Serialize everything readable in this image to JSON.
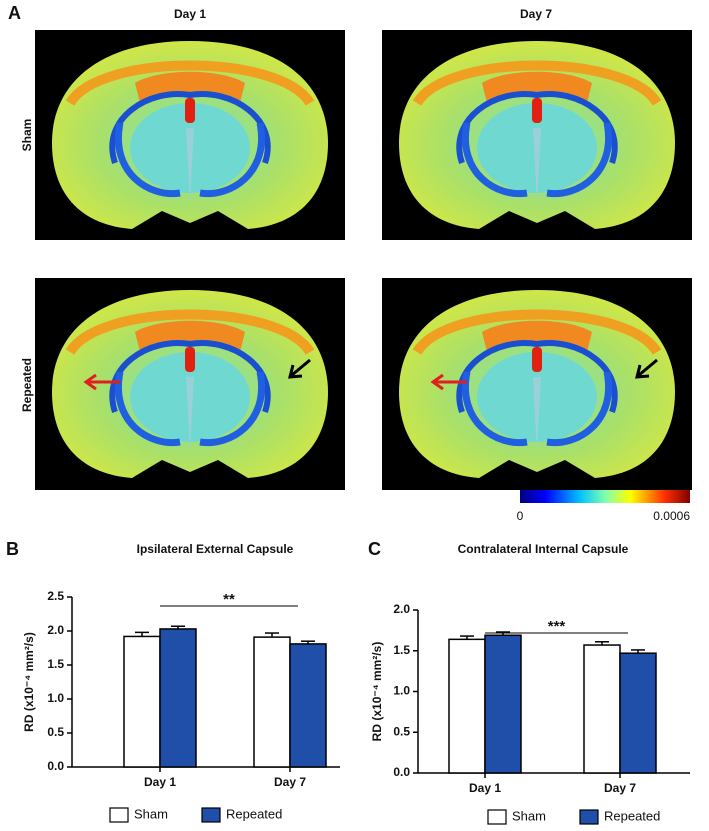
{
  "panel_a": {
    "label": "A",
    "columns": [
      "Day 1",
      "Day 7"
    ],
    "rows": [
      "Sham",
      "Repeated"
    ],
    "colorbar": {
      "ticks": [
        0,
        0.0006
      ]
    }
  },
  "chart_data": [
    {
      "type": "bar",
      "panel_label": "B",
      "title": "Ipsilateral External Capsule",
      "y_label": "RD (x10⁻⁴ mm²/s)",
      "categories": [
        "Day 1",
        "Day 7"
      ],
      "series": [
        {
          "name": "Sham",
          "color": "#ffffff",
          "values": [
            1.92,
            1.91
          ],
          "errors": [
            0.06,
            0.06
          ]
        },
        {
          "name": "Repeated",
          "color": "#1f4fa8",
          "values": [
            2.03,
            1.81
          ],
          "errors": [
            0.04,
            0.04
          ]
        }
      ],
      "ylim": [
        0,
        2.5
      ],
      "yticks": [
        {
          "value": 0,
          "label": "0.0"
        },
        0.5,
        {
          "value": 1,
          "label": "1.0"
        },
        1.5,
        {
          "value": 2,
          "label": "2.0"
        },
        2.5
      ],
      "annotation": "**"
    },
    {
      "type": "bar",
      "panel_label": "C",
      "title": "Contralateral Internal Capsule",
      "y_label": "RD (x10⁻⁴ mm²/s)",
      "categories": [
        "Day 1",
        "Day 7"
      ],
      "series": [
        {
          "name": "Sham",
          "color": "#ffffff",
          "values": [
            1.64,
            1.57
          ],
          "errors": [
            0.04,
            0.04
          ]
        },
        {
          "name": "Repeated",
          "color": "#1f4fa8",
          "values": [
            1.69,
            1.47
          ],
          "errors": [
            0.04,
            0.04
          ]
        }
      ],
      "ylim": [
        0,
        2
      ],
      "yticks": [
        {
          "value": 0,
          "label": "0.0"
        },
        0.5,
        {
          "value": 1,
          "label": "1.0"
        },
        1.5,
        {
          "value": 2,
          "label": "2.0"
        }
      ],
      "annotation": "***"
    }
  ]
}
